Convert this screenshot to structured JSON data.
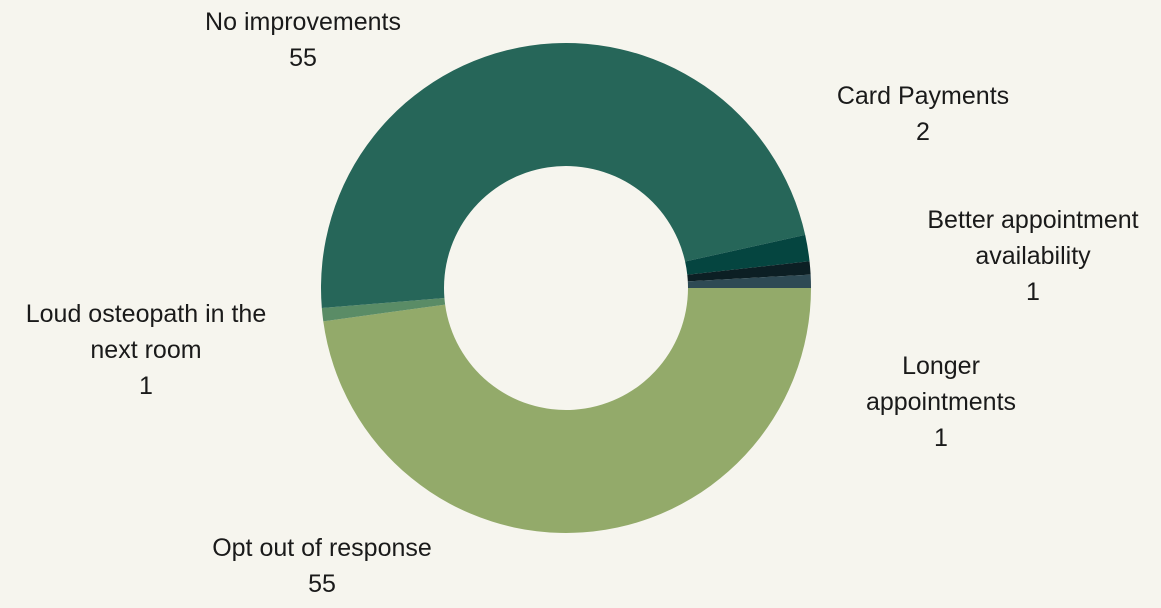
{
  "chart_data": {
    "type": "donut",
    "categories": [
      "Opt out of response",
      "Loud osteopath in the next room",
      "No improvements",
      "Card Payments",
      "Better appointment availability",
      "Longer appointments"
    ],
    "values": [
      55,
      1,
      55,
      2,
      1,
      1
    ],
    "colors": [
      "#93aa6a",
      "#5a8c66",
      "#266659",
      "#054540",
      "#0c1f24",
      "#2e4a54"
    ]
  }
}
